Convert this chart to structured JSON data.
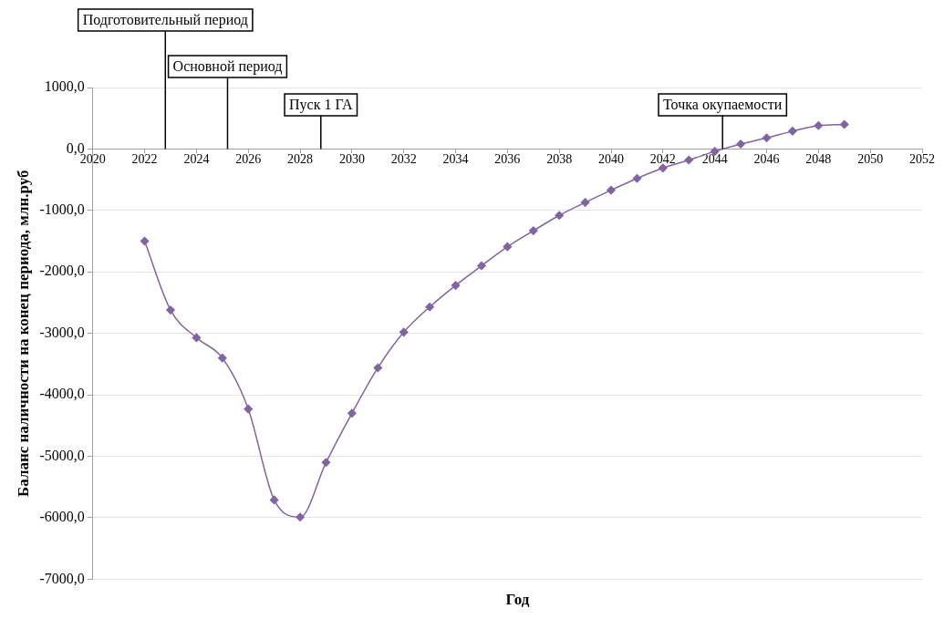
{
  "chart_data": {
    "type": "line",
    "xlabel": "Год",
    "ylabel": "Баланс наличности на конец периода, млн.руб",
    "x": [
      2022,
      2023,
      2024,
      2025,
      2026,
      2027,
      2028,
      2029,
      2030,
      2031,
      2032,
      2033,
      2034,
      2035,
      2036,
      2037,
      2038,
      2039,
      2040,
      2041,
      2042,
      2043,
      2044,
      2045,
      2046,
      2047,
      2048,
      2049
    ],
    "series": [
      {
        "color": "#8064a2",
        "values": [
          -1500,
          -2620,
          -3070,
          -3400,
          -4230,
          -5710,
          -5990,
          -5100,
          -4300,
          -3560,
          -2980,
          -2570,
          -2220,
          -1900,
          -1590,
          -1330,
          -1080,
          -870,
          -670,
          -480,
          -310,
          -180,
          -40,
          80,
          180,
          290,
          380,
          400
        ]
      }
    ],
    "xlim": [
      2020,
      2052
    ],
    "xticks": [
      2020,
      2022,
      2024,
      2026,
      2028,
      2030,
      2032,
      2034,
      2036,
      2038,
      2040,
      2042,
      2044,
      2046,
      2048,
      2050,
      2052
    ],
    "ylim": [
      -7000,
      1000
    ],
    "yticks": [
      {
        "value": -7000,
        "label": "-7000,0"
      },
      {
        "value": -6000,
        "label": "-6000,0"
      },
      {
        "value": -5000,
        "label": "-5000,0"
      },
      {
        "value": -4000,
        "label": "-4000,0"
      },
      {
        "value": -3000,
        "label": "-3000,0"
      },
      {
        "value": -2000,
        "label": "-2000,0"
      },
      {
        "value": -1000,
        "label": "-1000,0"
      },
      {
        "value": 0,
        "label": "0,0"
      },
      {
        "value": 1000,
        "label": "1000,0"
      }
    ],
    "grid": "y",
    "legend": false,
    "marker": "diamond",
    "line_style": "solid",
    "ref_lines": [
      {
        "axis": "x",
        "value": 2022.8,
        "label": "Подготовительный период"
      },
      {
        "axis": "x",
        "value": 2025.2,
        "label": "Основной период"
      },
      {
        "axis": "x",
        "value": 2028.8,
        "label": "Пуск 1 ГА"
      },
      {
        "axis": "x",
        "value": 2044.3,
        "label": "Точка окупаемости"
      }
    ]
  }
}
